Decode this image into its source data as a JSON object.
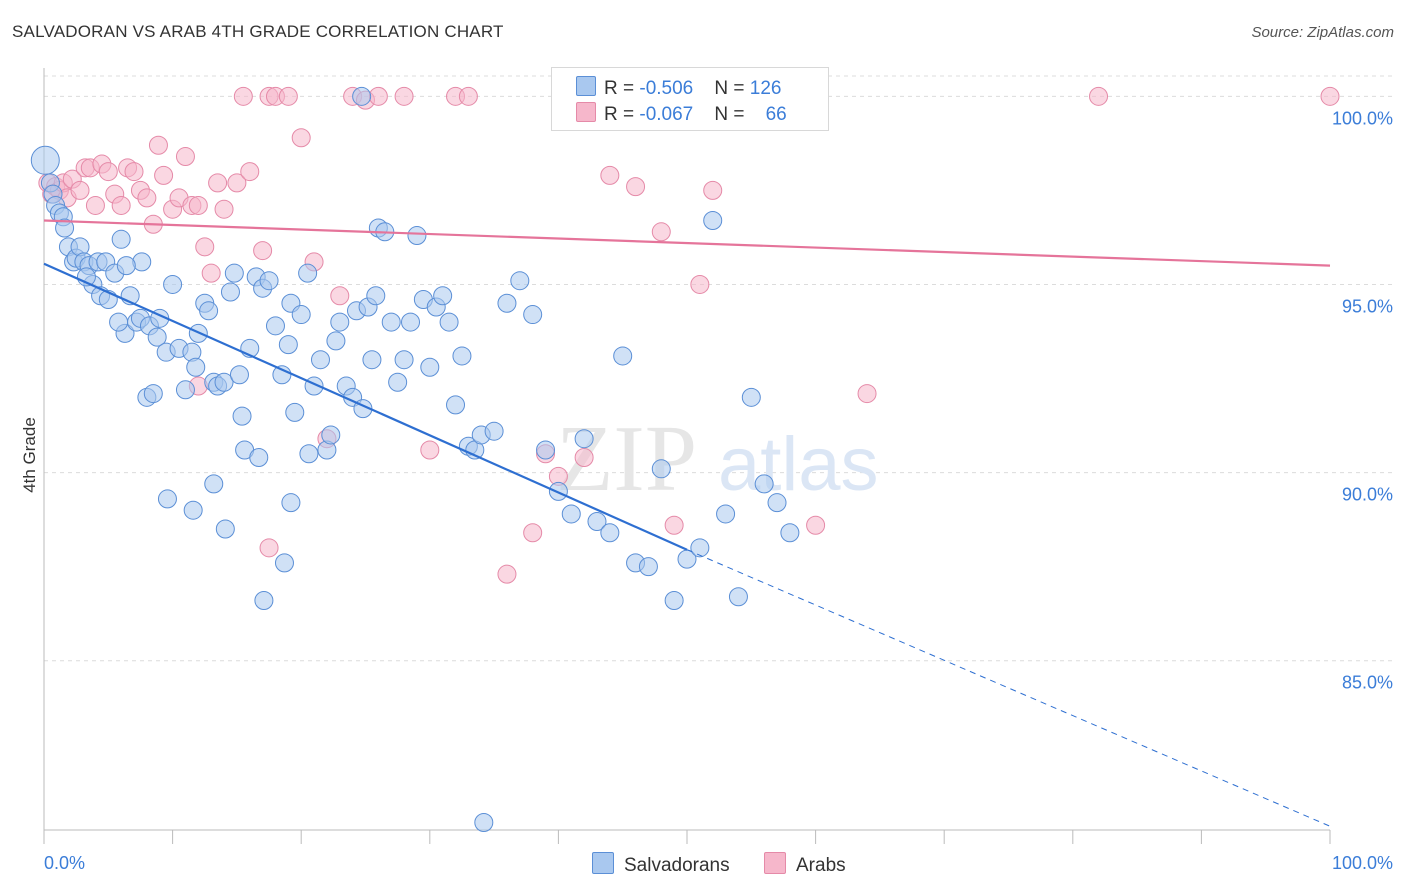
{
  "header": {
    "title": "SALVADORAN VS ARAB 4TH GRADE CORRELATION CHART",
    "source": "Source: ZipAtlas.com"
  },
  "legend": {
    "rows": [
      {
        "r_label": "R = ",
        "r_value": "-0.506",
        "n_label": "N = ",
        "n_value": "126",
        "color": "#a9c8ef"
      },
      {
        "r_label": "R = ",
        "r_value": "-0.067",
        "n_label": "N = ",
        "n_value": "66",
        "color": "#f6b7cb"
      }
    ]
  },
  "bottom_legend": {
    "salvadorans": "Salvadorans",
    "arabs": "Arabs"
  },
  "watermark": {
    "zip": "ZIP",
    "atlas": "atlas"
  },
  "colors": {
    "blue_fill": "#a9c8ef",
    "blue_stroke": "#5b8fd6",
    "blue_line": "#2e6fd1",
    "pink_fill": "#f6b7cb",
    "pink_stroke": "#e58aa8",
    "pink_line": "#e5749a",
    "tick_label": "#3b7dd8",
    "grid": "#dcdcdc"
  },
  "chart_data": {
    "type": "scatter",
    "title": "SALVADORAN VS ARAB 4TH GRADE CORRELATION CHART",
    "xlabel": "",
    "ylabel": "4th Grade",
    "xlim": [
      0,
      100
    ],
    "ylim": [
      80.5,
      100.7
    ],
    "x_tick_labels": [
      "0.0%",
      "100.0%"
    ],
    "y_ticks": [
      85,
      90,
      95,
      100
    ],
    "y_tick_labels": [
      "85.0%",
      "90.0%",
      "95.0%",
      "100.0%"
    ],
    "grid": true,
    "legend_position": "top-center",
    "series": [
      {
        "name": "Salvadorans",
        "r": -0.506,
        "n": 126,
        "trend": {
          "x": [
            0,
            50
          ],
          "y": [
            95.55,
            87.95
          ],
          "dashed_to": [
            100,
            80.6
          ]
        },
        "points": [
          [
            0.1,
            98.3
          ],
          [
            0.5,
            97.7
          ],
          [
            0.7,
            97.4
          ],
          [
            0.9,
            97.1
          ],
          [
            1.2,
            96.9
          ],
          [
            1.5,
            96.8
          ],
          [
            1.6,
            96.5
          ],
          [
            1.9,
            96.0
          ],
          [
            2.3,
            95.6
          ],
          [
            2.5,
            95.7
          ],
          [
            2.8,
            96.0
          ],
          [
            3.1,
            95.6
          ],
          [
            3.5,
            95.5
          ],
          [
            3.8,
            95.0
          ],
          [
            4.2,
            95.6
          ],
          [
            4.4,
            94.7
          ],
          [
            4.8,
            95.6
          ],
          [
            5.0,
            94.6
          ],
          [
            5.5,
            95.3
          ],
          [
            6.0,
            96.2
          ],
          [
            6.3,
            93.7
          ],
          [
            5.8,
            94.0
          ],
          [
            6.7,
            94.7
          ],
          [
            7.2,
            94.0
          ],
          [
            7.5,
            94.1
          ],
          [
            8.0,
            92.0
          ],
          [
            8.2,
            93.9
          ],
          [
            8.5,
            92.1
          ],
          [
            8.8,
            93.6
          ],
          [
            9.0,
            94.1
          ],
          [
            9.5,
            93.2
          ],
          [
            10.0,
            95.0
          ],
          [
            10.5,
            93.3
          ],
          [
            11.0,
            92.2
          ],
          [
            11.5,
            93.2
          ],
          [
            12.0,
            93.7
          ],
          [
            12.5,
            94.5
          ],
          [
            12.8,
            94.3
          ],
          [
            13.2,
            92.4
          ],
          [
            13.5,
            92.3
          ],
          [
            14.0,
            92.4
          ],
          [
            14.5,
            94.8
          ],
          [
            14.8,
            95.3
          ],
          [
            15.2,
            92.6
          ],
          [
            15.6,
            90.6
          ],
          [
            16.0,
            93.3
          ],
          [
            16.5,
            95.2
          ],
          [
            17.0,
            94.9
          ],
          [
            17.5,
            95.1
          ],
          [
            18.0,
            93.9
          ],
          [
            18.5,
            92.6
          ],
          [
            19.0,
            93.4
          ],
          [
            19.2,
            94.5
          ],
          [
            19.5,
            91.6
          ],
          [
            20.0,
            94.2
          ],
          [
            20.5,
            95.3
          ],
          [
            21.0,
            92.3
          ],
          [
            21.5,
            93.0
          ],
          [
            22.0,
            90.6
          ],
          [
            22.3,
            91.0
          ],
          [
            22.7,
            93.5
          ],
          [
            23.0,
            94.0
          ],
          [
            23.5,
            92.3
          ],
          [
            24.0,
            92.0
          ],
          [
            24.3,
            94.3
          ],
          [
            24.8,
            91.7
          ],
          [
            25.2,
            94.4
          ],
          [
            25.5,
            93.0
          ],
          [
            25.8,
            94.7
          ],
          [
            26.0,
            96.5
          ],
          [
            26.5,
            96.4
          ],
          [
            27.0,
            94.0
          ],
          [
            27.5,
            92.4
          ],
          [
            28.0,
            93.0
          ],
          [
            28.5,
            94.0
          ],
          [
            29.0,
            96.3
          ],
          [
            29.5,
            94.6
          ],
          [
            30.0,
            92.8
          ],
          [
            30.5,
            94.4
          ],
          [
            31.0,
            94.7
          ],
          [
            31.5,
            94.0
          ],
          [
            32.0,
            91.8
          ],
          [
            32.5,
            93.1
          ],
          [
            33.0,
            90.7
          ],
          [
            33.5,
            90.6
          ],
          [
            34.0,
            91.0
          ],
          [
            35.0,
            91.1
          ],
          [
            36.0,
            94.5
          ],
          [
            37.0,
            95.1
          ],
          [
            38.0,
            94.2
          ],
          [
            39.0,
            90.6
          ],
          [
            40.0,
            89.5
          ],
          [
            41.0,
            88.9
          ],
          [
            42.0,
            90.9
          ],
          [
            43.0,
            88.7
          ],
          [
            44.0,
            88.4
          ],
          [
            45.0,
            93.1
          ],
          [
            46.0,
            87.6
          ],
          [
            47.0,
            87.5
          ],
          [
            48.0,
            90.1
          ],
          [
            49.0,
            86.6
          ],
          [
            50.0,
            87.7
          ],
          [
            51.0,
            88.0
          ],
          [
            52.0,
            96.7
          ],
          [
            53.0,
            88.9
          ],
          [
            54.0,
            86.7
          ],
          [
            55.0,
            92.0
          ],
          [
            56.0,
            89.7
          ],
          [
            57.0,
            89.2
          ],
          [
            58.0,
            88.4
          ],
          [
            24.7,
            100.0
          ],
          [
            20.6,
            90.5
          ],
          [
            9.6,
            89.3
          ],
          [
            11.6,
            89.0
          ],
          [
            14.1,
            88.5
          ],
          [
            13.2,
            89.7
          ],
          [
            15.4,
            91.5
          ],
          [
            16.7,
            90.4
          ],
          [
            19.2,
            89.2
          ],
          [
            18.7,
            87.6
          ],
          [
            17.1,
            86.6
          ],
          [
            11.8,
            92.8
          ],
          [
            7.6,
            95.6
          ],
          [
            6.4,
            95.5
          ],
          [
            3.3,
            95.2
          ],
          [
            34.2,
            80.7
          ]
        ]
      },
      {
        "name": "Arabs",
        "r": -0.067,
        "n": 66,
        "trend": {
          "x": [
            0,
            100
          ],
          "y": [
            96.7,
            95.5
          ]
        },
        "points": [
          [
            0.3,
            97.7
          ],
          [
            0.6,
            97.4
          ],
          [
            0.9,
            97.6
          ],
          [
            1.2,
            97.5
          ],
          [
            1.5,
            97.7
          ],
          [
            1.8,
            97.3
          ],
          [
            2.2,
            97.8
          ],
          [
            2.8,
            97.5
          ],
          [
            3.2,
            98.1
          ],
          [
            3.6,
            98.1
          ],
          [
            4.0,
            97.1
          ],
          [
            4.5,
            98.2
          ],
          [
            5.0,
            98.0
          ],
          [
            5.5,
            97.4
          ],
          [
            6.0,
            97.1
          ],
          [
            6.5,
            98.1
          ],
          [
            7.0,
            98.0
          ],
          [
            7.5,
            97.5
          ],
          [
            8.0,
            97.3
          ],
          [
            8.5,
            96.6
          ],
          [
            8.9,
            98.7
          ],
          [
            9.3,
            97.9
          ],
          [
            10.0,
            97.0
          ],
          [
            10.5,
            97.3
          ],
          [
            11.0,
            98.4
          ],
          [
            11.5,
            97.1
          ],
          [
            12.0,
            97.1
          ],
          [
            12.5,
            96.0
          ],
          [
            13.0,
            95.3
          ],
          [
            13.5,
            97.7
          ],
          [
            14.0,
            97.0
          ],
          [
            15.0,
            97.7
          ],
          [
            15.5,
            100.0
          ],
          [
            16.0,
            98.0
          ],
          [
            17.0,
            95.9
          ],
          [
            17.5,
            100.0
          ],
          [
            18.0,
            100.0
          ],
          [
            19.0,
            100.0
          ],
          [
            20.0,
            98.9
          ],
          [
            21.0,
            95.6
          ],
          [
            22.0,
            90.9
          ],
          [
            23.0,
            94.7
          ],
          [
            24.0,
            100.0
          ],
          [
            25.0,
            99.9
          ],
          [
            26.0,
            100.0
          ],
          [
            28.0,
            100.0
          ],
          [
            30.0,
            90.6
          ],
          [
            32.0,
            100.0
          ],
          [
            33.0,
            100.0
          ],
          [
            36.0,
            87.3
          ],
          [
            38.0,
            88.4
          ],
          [
            39.0,
            90.5
          ],
          [
            40.0,
            89.9
          ],
          [
            42.0,
            90.4
          ],
          [
            44.0,
            97.9
          ],
          [
            46.0,
            97.6
          ],
          [
            48.0,
            96.4
          ],
          [
            49.0,
            88.6
          ],
          [
            51.0,
            95.0
          ],
          [
            52.0,
            97.5
          ],
          [
            60.0,
            88.6
          ],
          [
            64.0,
            92.1
          ],
          [
            82.0,
            100.0
          ],
          [
            100.0,
            100.0
          ],
          [
            17.5,
            88.0
          ],
          [
            12.0,
            92.3
          ]
        ]
      }
    ]
  }
}
